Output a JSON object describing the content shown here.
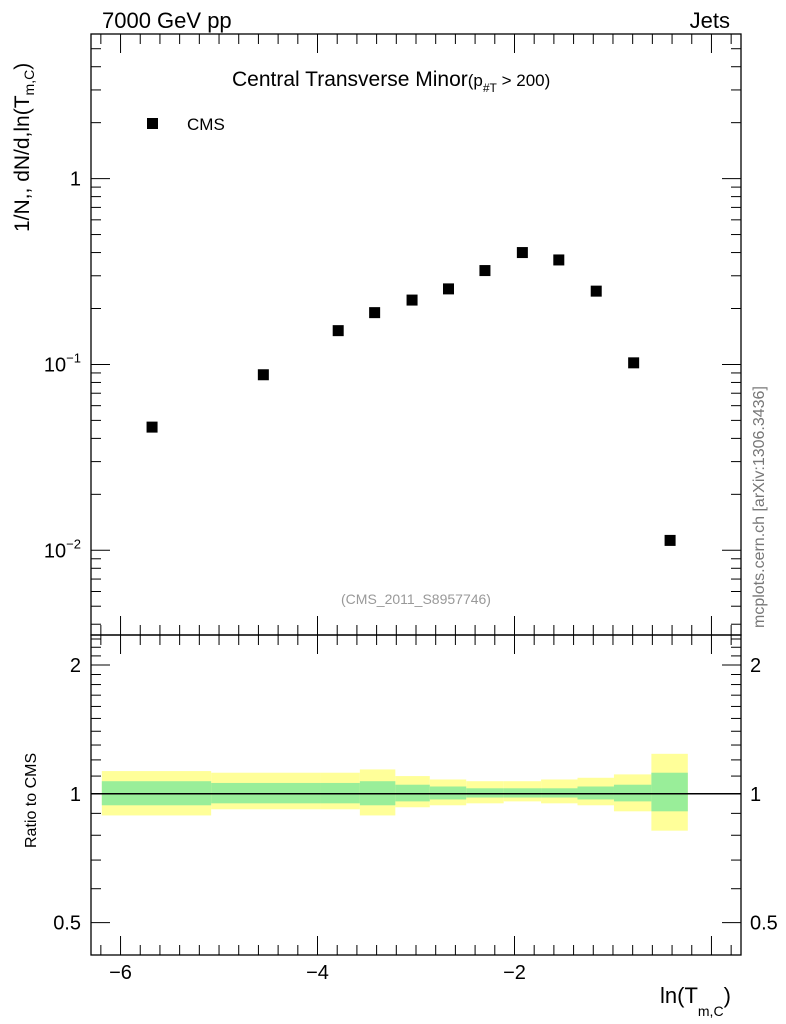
{
  "header": {
    "left": "7000 GeV pp",
    "right": "Jets"
  },
  "watermark": "mcplots.cern.ch [arXiv:1306.3436]",
  "analysis_id": "(CMS_2011_S8957746)",
  "chart_data": [
    {
      "type": "scatter",
      "panel": "main",
      "title_main": "Central Transverse Minor",
      "title_sub": "(p",
      "title_sub_index": "#T",
      "title_tail": " > 200)",
      "ylabel_main": "1/N",
      "ylabel_mid": ",, dN/d,ln(T",
      "ylabel_sub": "m,C",
      "ylabel_end": ")",
      "yscale": "log",
      "ylim": [
        0.0035,
        6
      ],
      "xlim": [
        -6.3,
        0.3
      ],
      "y_tick_labels": [
        {
          "value": 1,
          "base": "1",
          "exp": ""
        },
        {
          "value": 0.1,
          "base": "10",
          "exp": "−1"
        },
        {
          "value": 0.01,
          "base": "10",
          "exp": "−2"
        }
      ],
      "series": [
        {
          "name": "CMS",
          "color": "#000000",
          "marker": "square",
          "x": [
            -5.68,
            -4.55,
            -3.79,
            -3.42,
            -3.04,
            -2.67,
            -2.3,
            -1.92,
            -1.55,
            -1.17,
            -0.79,
            -0.42
          ],
          "y": [
            0.046,
            0.088,
            0.152,
            0.19,
            0.222,
            0.255,
            0.32,
            0.4,
            0.365,
            0.248,
            0.102,
            0.0113
          ]
        }
      ],
      "legend": {
        "label": "CMS",
        "position": "top-left"
      }
    },
    {
      "type": "area",
      "panel": "ratio",
      "ylabel": "Ratio to CMS",
      "xlabel_main": "ln(T",
      "xlabel_sub": "m,C",
      "xlabel_end": ")",
      "yscale": "log",
      "ylim": [
        0.42,
        2.35
      ],
      "xlim": [
        -6.3,
        0.3
      ],
      "x_ticks": [
        -6,
        -4,
        -2
      ],
      "x_tick_labels": [
        "−6",
        "−4",
        "−2"
      ],
      "y_ticks": [
        0.5,
        1,
        2
      ],
      "y_tick_labels": [
        "0.5",
        "1",
        "2"
      ],
      "reference_line": 1,
      "bin_edges": [
        -6.19,
        -5.08,
        -3.97,
        -3.57,
        -3.21,
        -2.86,
        -2.49,
        -2.11,
        -1.73,
        -1.36,
        -0.99,
        -0.61,
        -0.24
      ],
      "band_inner": {
        "color": "#99ee99",
        "low": [
          0.94,
          0.95,
          0.95,
          0.94,
          0.96,
          0.97,
          0.98,
          0.98,
          0.98,
          0.97,
          0.96,
          0.91
        ],
        "high": [
          1.07,
          1.06,
          1.06,
          1.07,
          1.05,
          1.04,
          1.03,
          1.03,
          1.03,
          1.04,
          1.05,
          1.12
        ]
      },
      "band_outer": {
        "color": "#ffff99",
        "low": [
          0.89,
          0.92,
          0.92,
          0.89,
          0.93,
          0.94,
          0.95,
          0.96,
          0.95,
          0.94,
          0.91,
          0.82
        ],
        "high": [
          1.13,
          1.12,
          1.12,
          1.14,
          1.1,
          1.08,
          1.07,
          1.07,
          1.08,
          1.09,
          1.11,
          1.24
        ]
      }
    }
  ]
}
